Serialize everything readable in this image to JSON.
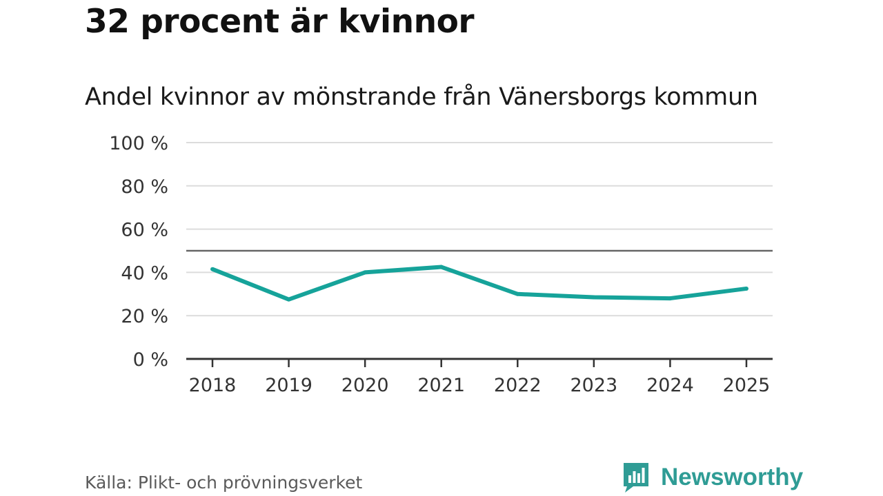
{
  "header": {
    "title": "32 procent är kvinnor",
    "subtitle": "Andel kvinnor av mönstrande från Vänersborgs kommun"
  },
  "footer": {
    "source": "Källa: Plikt- och prövningsverket",
    "brand": "Newsworthy"
  },
  "colors": {
    "line": "#16a39a",
    "reference_line": "#666666",
    "grid": "#dcdcdc",
    "axis": "#333333",
    "brand": "#2f9c95"
  },
  "chart_data": {
    "type": "line",
    "title": "32 procent är kvinnor",
    "subtitle": "Andel kvinnor av mönstrande från Vänersborgs kommun",
    "xlabel": "",
    "ylabel": "",
    "categories": [
      "2018",
      "2019",
      "2020",
      "2021",
      "2022",
      "2023",
      "2024",
      "2025"
    ],
    "series": [
      {
        "name": "Andel kvinnor",
        "values": [
          41.5,
          27.5,
          40,
          42.5,
          30,
          28.5,
          28,
          32.5
        ]
      }
    ],
    "ylim": [
      0,
      100
    ],
    "yticks": [
      0,
      20,
      40,
      60,
      80,
      100
    ],
    "ytick_labels": [
      "0 %",
      "20 %",
      "40 %",
      "60 %",
      "80 %",
      "100 %"
    ],
    "reference_value": 50,
    "grid": true,
    "legend": "none",
    "source": "Källa: Plikt- och prövningsverket"
  }
}
